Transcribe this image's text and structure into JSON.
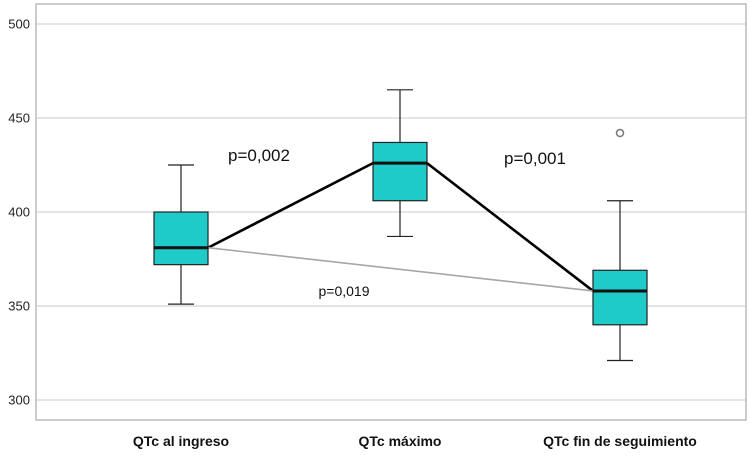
{
  "chart_data": {
    "type": "box",
    "categories": [
      "QTc al ingreso",
      "QTc máximo",
      "QTc fin de seguimiento"
    ],
    "boxes": [
      {
        "min": 351,
        "q1": 372,
        "median": 381,
        "q3": 400,
        "max": 425,
        "outliers": []
      },
      {
        "min": 387,
        "q1": 406,
        "median": 426,
        "q3": 437,
        "max": 465,
        "outliers": []
      },
      {
        "min": 321,
        "q1": 340,
        "median": 358,
        "q3": 369,
        "max": 406,
        "outliers": [
          442
        ]
      }
    ],
    "ylim": [
      290,
      510
    ],
    "yticks": [
      300,
      350,
      400,
      450,
      500
    ],
    "grid": true,
    "box_color": "#1ecbc9",
    "connectors": [
      {
        "from": 0,
        "to": 1,
        "color": "#000000",
        "style": "bold"
      },
      {
        "from": 1,
        "to": 2,
        "color": "#000000",
        "style": "bold"
      },
      {
        "from": 0,
        "to": 2,
        "color": "#a6a6a6",
        "style": "thin"
      }
    ],
    "annotations": [
      {
        "text": "p=0,002",
        "between": [
          0,
          1
        ]
      },
      {
        "text": "p=0,001",
        "between": [
          1,
          2
        ]
      },
      {
        "text": "p=0,019",
        "between": [
          0,
          2
        ]
      }
    ]
  }
}
